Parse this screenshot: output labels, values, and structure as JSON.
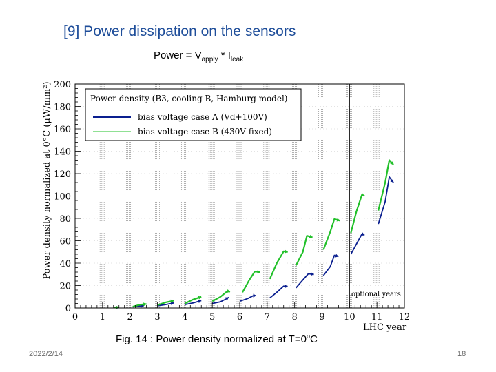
{
  "slide": {
    "title": "[9]  Power dissipation on the sensors",
    "formula": {
      "prefix": "Power = V",
      "sub1": "apply",
      "mid": " * I",
      "sub2": "leak"
    },
    "caption": {
      "prefix": "Fig. 14 : Power density normalized at T=0",
      "sup": "o",
      "suffix": "C"
    },
    "date": "2022/2/14",
    "page": "18"
  },
  "colors": {
    "title": "#1f4e9a",
    "series_a": "#0a1f8f",
    "series_b": "#22c02a",
    "grid": "#8c8c8c"
  },
  "chart_data": {
    "type": "line",
    "title": "",
    "xlabel": "LHC year",
    "ylabel": "Power density normalized at 0°C (μW/mm²)",
    "xlim": [
      0,
      12
    ],
    "ylim": [
      0,
      200
    ],
    "xticks": [
      "0",
      "1",
      "2",
      "3",
      "4",
      "5",
      "6",
      "7",
      "8",
      "9",
      "10",
      "11",
      "12"
    ],
    "yticks": [
      "0",
      "20",
      "40",
      "60",
      "80",
      "100",
      "120",
      "140",
      "160",
      "180",
      "200"
    ],
    "legend": {
      "header": "Power density  (B3, cooling B, Hamburg model)",
      "entries": [
        "bias voltage case A (Vd+100V)",
        "bias voltage case B (430V fixed)"
      ],
      "position": "top-left"
    },
    "annotation": "optional years",
    "optional_years_start": 10,
    "series": [
      {
        "name": "bias voltage case A (Vd+100V)",
        "color": "#0a1f8f",
        "segments": [
          [
            [
              1.4,
              0.3
            ],
            [
              1.6,
              0.5
            ]
          ],
          [
            [
              2.1,
              1.0
            ],
            [
              2.3,
              1.5
            ],
            [
              2.5,
              2.0
            ]
          ],
          [
            [
              3.0,
              2.0
            ],
            [
              3.3,
              3.0
            ],
            [
              3.6,
              4.5
            ]
          ],
          [
            [
              4.0,
              3.0
            ],
            [
              4.3,
              4.5
            ],
            [
              4.6,
              6.5
            ]
          ],
          [
            [
              5.0,
              4.0
            ],
            [
              5.3,
              5.5
            ],
            [
              5.5,
              8.0
            ],
            [
              5.6,
              9.5
            ]
          ],
          [
            [
              6.0,
              6.0
            ],
            [
              6.3,
              8.5
            ],
            [
              6.5,
              11.0
            ],
            [
              6.6,
              11.0
            ]
          ],
          [
            [
              7.1,
              9.0
            ],
            [
              7.35,
              14.0
            ],
            [
              7.6,
              19.5
            ],
            [
              7.75,
              19.0
            ]
          ],
          [
            [
              8.05,
              18.0
            ],
            [
              8.3,
              25.0
            ],
            [
              8.5,
              30.5
            ],
            [
              8.7,
              30.0
            ]
          ],
          [
            [
              9.05,
              29.0
            ],
            [
              9.3,
              37.0
            ],
            [
              9.45,
              47.0
            ],
            [
              9.6,
              46.0
            ]
          ],
          [
            [
              10.05,
              48.0
            ],
            [
              10.25,
              57.0
            ],
            [
              10.45,
              66.0
            ],
            [
              10.55,
              65.0
            ]
          ],
          [
            [
              11.05,
              75.0
            ],
            [
              11.3,
              95.0
            ],
            [
              11.45,
              117.0
            ],
            [
              11.6,
              112.0
            ]
          ]
        ]
      },
      {
        "name": "bias voltage case B (430V fixed)",
        "color": "#22c02a",
        "segments": [
          [
            [
              1.4,
              0.4
            ],
            [
              1.6,
              0.6
            ]
          ],
          [
            [
              2.1,
              1.2
            ],
            [
              2.35,
              2.8
            ],
            [
              2.6,
              3.5
            ]
          ],
          [
            [
              3.0,
              2.5
            ],
            [
              3.3,
              5.0
            ],
            [
              3.6,
              6.5
            ]
          ],
          [
            [
              4.0,
              4.0
            ],
            [
              4.3,
              7.5
            ],
            [
              4.6,
              10.0
            ]
          ],
          [
            [
              5.0,
              6.0
            ],
            [
              5.3,
              10.0
            ],
            [
              5.55,
              15.0
            ],
            [
              5.65,
              14.5
            ]
          ],
          [
            [
              6.1,
              14.0
            ],
            [
              6.35,
              25.0
            ],
            [
              6.55,
              32.5
            ],
            [
              6.75,
              32.0
            ]
          ],
          [
            [
              7.1,
              26.0
            ],
            [
              7.35,
              40.0
            ],
            [
              7.6,
              50.5
            ],
            [
              7.75,
              50.0
            ]
          ],
          [
            [
              8.05,
              38.0
            ],
            [
              8.3,
              50.0
            ],
            [
              8.45,
              64.5
            ],
            [
              8.65,
              63.0
            ]
          ],
          [
            [
              9.05,
              52.0
            ],
            [
              9.3,
              68.0
            ],
            [
              9.45,
              79.5
            ],
            [
              9.65,
              78.0
            ]
          ],
          [
            [
              10.05,
              67.0
            ],
            [
              10.25,
              86.0
            ],
            [
              10.45,
              101.0
            ],
            [
              10.55,
              100.0
            ]
          ],
          [
            [
              11.05,
              87.0
            ],
            [
              11.3,
              112.0
            ],
            [
              11.45,
              132.0
            ],
            [
              11.6,
              128.0
            ]
          ]
        ]
      }
    ]
  }
}
